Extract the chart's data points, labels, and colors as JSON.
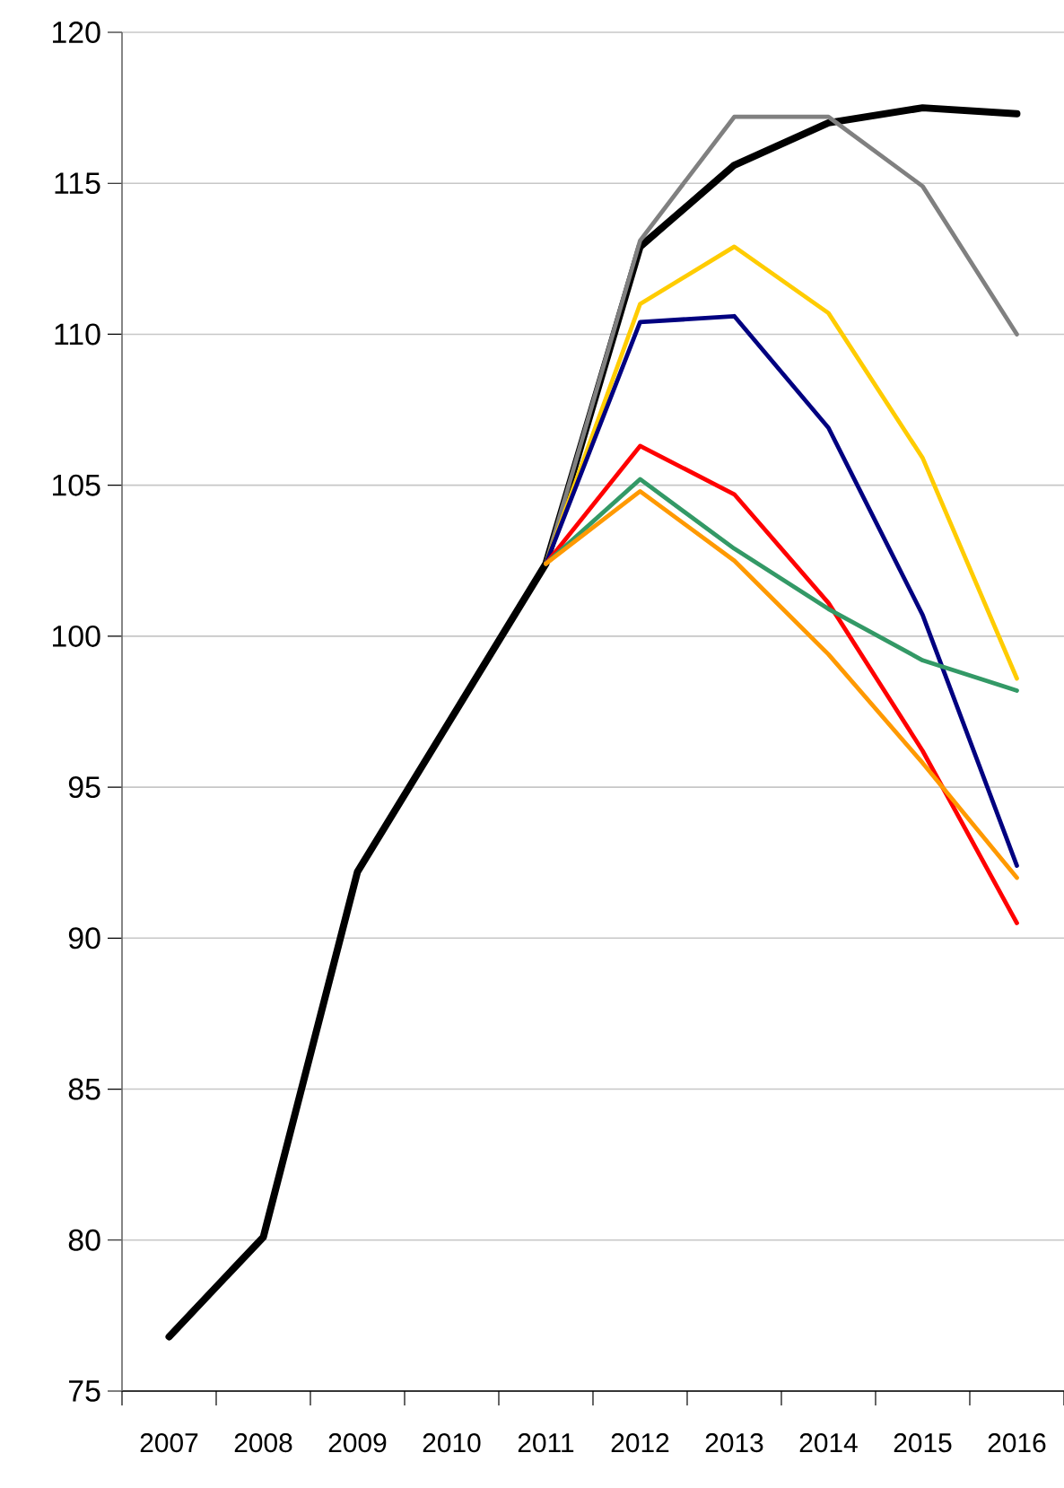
{
  "chart_data": {
    "type": "line",
    "categories": [
      "2007",
      "2008",
      "2009",
      "2010",
      "2011",
      "2012",
      "2013",
      "2014",
      "2015",
      "2016"
    ],
    "series": [
      {
        "color": "#000000",
        "values": [
          76.8,
          80.1,
          92.2,
          97.3,
          102.4,
          112.9,
          115.6,
          117.0,
          117.5,
          117.3
        ]
      },
      {
        "color": "#808080",
        "values": [
          null,
          null,
          null,
          null,
          102.4,
          113.1,
          117.2,
          117.2,
          114.9,
          110.0
        ]
      },
      {
        "color": "#ffcc00",
        "values": [
          null,
          null,
          null,
          null,
          102.4,
          111.0,
          112.9,
          110.7,
          105.9,
          98.6
        ]
      },
      {
        "color": "#000080",
        "values": [
          null,
          null,
          null,
          null,
          102.4,
          110.4,
          110.6,
          106.9,
          100.7,
          92.4
        ]
      },
      {
        "color": "#ff0000",
        "values": [
          null,
          null,
          null,
          null,
          102.4,
          106.3,
          104.7,
          101.1,
          96.2,
          90.5
        ]
      },
      {
        "color": "#339966",
        "values": [
          null,
          null,
          null,
          null,
          102.4,
          105.2,
          102.9,
          100.9,
          99.2,
          98.2
        ]
      },
      {
        "color": "#ff9900",
        "values": [
          null,
          null,
          null,
          null,
          102.4,
          104.8,
          102.5,
          99.4,
          95.8,
          92.0
        ]
      }
    ],
    "ylim": [
      75,
      120
    ],
    "yticks": [
      75,
      80,
      85,
      90,
      95,
      100,
      105,
      110,
      115,
      120
    ],
    "grid": "y"
  }
}
